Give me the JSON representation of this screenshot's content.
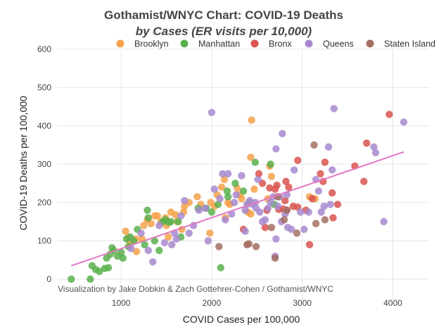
{
  "chart_data": {
    "type": "scatter",
    "title": "Gothamist/WNYC Chart: COVID-19 Deaths",
    "subtitle": "by Cases (ER visits per 10,000)",
    "xlabel": "COVID Cases per 100,000",
    "ylabel": "COVID-19 Deaths per 100,000",
    "credit": "Visualization by Jake Dobkin & Zach Gottehrer-Cohen / Gothamist/WNYC",
    "xlim": [
      300,
      4400
    ],
    "ylim": [
      0,
      600
    ],
    "x_ticks": [
      1000,
      2000,
      3000,
      4000
    ],
    "y_ticks": [
      0,
      100,
      200,
      300,
      400,
      500,
      600
    ],
    "grid": true,
    "legend_position": "top",
    "trendline": {
      "color": "#e377c2",
      "x": [
        450,
        4120
      ],
      "y": [
        35,
        332
      ]
    },
    "series": [
      {
        "name": "Brooklyn",
        "color": "#f4a14a",
        "points": [
          [
            1050,
            125
          ],
          [
            1080,
            108
          ],
          [
            1100,
            95
          ],
          [
            1160,
            105
          ],
          [
            1170,
            72
          ],
          [
            1230,
            105
          ],
          [
            1250,
            140
          ],
          [
            1290,
            155
          ],
          [
            1330,
            145
          ],
          [
            1370,
            165
          ],
          [
            1400,
            165
          ],
          [
            1440,
            150
          ],
          [
            1490,
            160
          ],
          [
            1500,
            140
          ],
          [
            1520,
            110
          ],
          [
            1550,
            175
          ],
          [
            1600,
            168
          ],
          [
            1620,
            150
          ],
          [
            1670,
            130
          ],
          [
            1690,
            175
          ],
          [
            1700,
            190
          ],
          [
            1750,
            200
          ],
          [
            1840,
            215
          ],
          [
            1880,
            195
          ],
          [
            1980,
            120
          ],
          [
            1990,
            200
          ],
          [
            2030,
            190
          ],
          [
            2060,
            220
          ],
          [
            2110,
            240
          ],
          [
            2140,
            260
          ],
          [
            2180,
            200
          ],
          [
            2200,
            195
          ],
          [
            2280,
            238
          ],
          [
            2310,
            220
          ],
          [
            2330,
            210
          ],
          [
            2400,
            175
          ],
          [
            2430,
            318
          ],
          [
            2440,
            415
          ],
          [
            2470,
            235
          ],
          [
            2620,
            210
          ],
          [
            2640,
            295
          ],
          [
            2660,
            268
          ],
          [
            3080,
            215
          ],
          [
            3140,
            210
          ],
          [
            2150,
            160
          ],
          [
            2430,
            170
          ]
        ]
      },
      {
        "name": "Manhattan",
        "color": "#5ab04e",
        "points": [
          [
            450,
            0
          ],
          [
            680,
            35
          ],
          [
            720,
            25
          ],
          [
            760,
            20
          ],
          [
            660,
            0
          ],
          [
            820,
            28
          ],
          [
            840,
            55
          ],
          [
            860,
            30
          ],
          [
            880,
            65
          ],
          [
            900,
            82
          ],
          [
            920,
            75
          ],
          [
            960,
            60
          ],
          [
            1000,
            70
          ],
          [
            1020,
            55
          ],
          [
            1060,
            105
          ],
          [
            1080,
            85
          ],
          [
            1100,
            110
          ],
          [
            1140,
            100
          ],
          [
            1180,
            130
          ],
          [
            1260,
            90
          ],
          [
            1290,
            180
          ],
          [
            1300,
            160
          ],
          [
            1370,
            100
          ],
          [
            1420,
            75
          ],
          [
            1460,
            150
          ],
          [
            1490,
            155
          ],
          [
            1530,
            148
          ],
          [
            1550,
            150
          ],
          [
            1630,
            150
          ],
          [
            1660,
            110
          ],
          [
            1850,
            185
          ],
          [
            1940,
            185
          ],
          [
            2000,
            175
          ],
          [
            2070,
            195
          ],
          [
            2100,
            30
          ],
          [
            2170,
            230
          ],
          [
            2180,
            215
          ],
          [
            2260,
            250
          ],
          [
            2350,
            230
          ],
          [
            2410,
            200
          ],
          [
            2480,
            305
          ],
          [
            2650,
            300
          ],
          [
            2690,
            195
          ]
        ]
      },
      {
        "name": "Bronx",
        "color": "#d9534f",
        "points": [
          [
            2350,
            130
          ],
          [
            2520,
            275
          ],
          [
            2560,
            250
          ],
          [
            2610,
            180
          ],
          [
            2640,
            238
          ],
          [
            2700,
            235
          ],
          [
            2720,
            245
          ],
          [
            2740,
            182
          ],
          [
            2790,
            183
          ],
          [
            2810,
            205
          ],
          [
            2820,
            255
          ],
          [
            2830,
            180
          ],
          [
            2850,
            240
          ],
          [
            2900,
            190
          ],
          [
            2950,
            310
          ],
          [
            2950,
            188
          ],
          [
            3080,
            90
          ],
          [
            3110,
            210
          ],
          [
            3200,
            275
          ],
          [
            3230,
            255
          ],
          [
            3250,
            305
          ],
          [
            3330,
            225
          ],
          [
            3340,
            160
          ],
          [
            3390,
            195
          ],
          [
            3580,
            295
          ],
          [
            3680,
            255
          ],
          [
            3710,
            355
          ],
          [
            3960,
            430
          ],
          [
            2590,
            135
          ],
          [
            3040,
            180
          ]
        ]
      },
      {
        "name": "Queens",
        "color": "#a889cf",
        "points": [
          [
            2000,
            435
          ],
          [
            2030,
            235
          ],
          [
            1700,
            205
          ],
          [
            1660,
            165
          ],
          [
            1750,
            120
          ],
          [
            1800,
            140
          ],
          [
            1860,
            180
          ],
          [
            1930,
            185
          ],
          [
            1960,
            100
          ],
          [
            2090,
            210
          ],
          [
            2150,
            155
          ],
          [
            2180,
            275
          ],
          [
            2220,
            170
          ],
          [
            2250,
            200
          ],
          [
            2270,
            220
          ],
          [
            2330,
            270
          ],
          [
            2370,
            180
          ],
          [
            2390,
            195
          ],
          [
            2420,
            205
          ],
          [
            2450,
            195
          ],
          [
            2480,
            200
          ],
          [
            2490,
            185
          ],
          [
            2510,
            260
          ],
          [
            2530,
            175
          ],
          [
            2560,
            150
          ],
          [
            2590,
            155
          ],
          [
            2620,
            185
          ],
          [
            2650,
            200
          ],
          [
            2680,
            215
          ],
          [
            2710,
            340
          ],
          [
            2710,
            105
          ],
          [
            2730,
            190
          ],
          [
            2750,
            215
          ],
          [
            2770,
            150
          ],
          [
            2780,
            380
          ],
          [
            2810,
            170
          ],
          [
            2830,
            220
          ],
          [
            2840,
            135
          ],
          [
            2880,
            130
          ],
          [
            2910,
            285
          ],
          [
            2980,
            175
          ],
          [
            3020,
            130
          ],
          [
            3070,
            175
          ],
          [
            3150,
            260
          ],
          [
            3180,
            230
          ],
          [
            3210,
            175
          ],
          [
            3240,
            190
          ],
          [
            3290,
            345
          ],
          [
            3310,
            195
          ],
          [
            3330,
            285
          ],
          [
            3350,
            445
          ],
          [
            3790,
            345
          ],
          [
            3810,
            330
          ],
          [
            3900,
            150
          ],
          [
            4120,
            410
          ],
          [
            1110,
            80
          ],
          [
            1220,
            120
          ],
          [
            1300,
            75
          ],
          [
            1350,
            45
          ],
          [
            1420,
            140
          ],
          [
            1480,
            95
          ],
          [
            1560,
            90
          ],
          [
            1610,
            105
          ],
          [
            1590,
            120
          ],
          [
            2370,
            125
          ],
          [
            2120,
            275
          ],
          [
            2700,
            60
          ]
        ]
      },
      {
        "name": "Staten Island",
        "color": "#a37063",
        "points": [
          [
            2080,
            85
          ],
          [
            2390,
            90
          ],
          [
            2410,
            92
          ],
          [
            2490,
            85
          ],
          [
            2660,
            135
          ],
          [
            2700,
            55
          ],
          [
            2730,
            215
          ],
          [
            2800,
            155
          ],
          [
            2830,
            180
          ],
          [
            2940,
            120
          ],
          [
            3130,
            350
          ],
          [
            3150,
            145
          ],
          [
            3250,
            155
          ]
        ]
      }
    ]
  }
}
